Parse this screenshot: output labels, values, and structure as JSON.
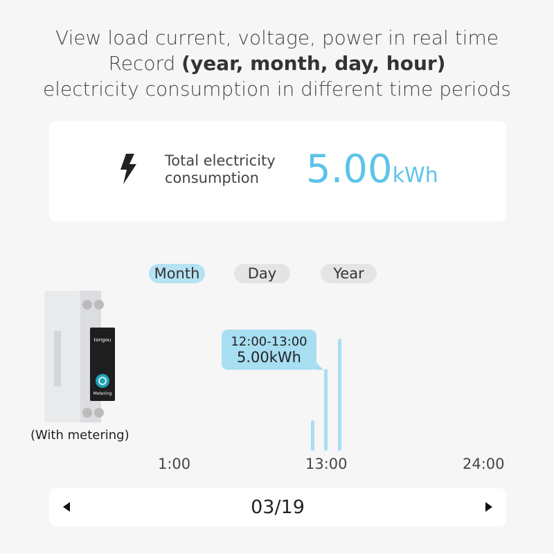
{
  "headline": {
    "line1": "View load current, voltage, power in real time",
    "line2_prefix": "Record ",
    "line2_bold": "(year, month, day, hour)",
    "line3": "electricity consumption in different time periods"
  },
  "total": {
    "icon": "lightning-bolt-icon",
    "label_line1": "Total electricity",
    "label_line2": "consumption",
    "value": "5.00",
    "unit": "kWh",
    "color": "#5cc4e8"
  },
  "tabs": [
    {
      "label": "Month",
      "active": true
    },
    {
      "label": "Day",
      "active": false
    },
    {
      "label": "Year",
      "active": false
    }
  ],
  "device": {
    "caption": "(With metering)",
    "brand": "tongou",
    "button_label": "Metering"
  },
  "chart_data": {
    "type": "bar",
    "x_ticks": [
      "1:00",
      "13:00",
      "24:00"
    ],
    "tooltip": {
      "range": "12:00-13:00",
      "value": "5.00kWh"
    },
    "bar_color": "#a8def2",
    "values_relative": [
      0.27,
      0.73,
      1.0
    ]
  },
  "nav": {
    "date": "03/19",
    "prev_icon": "triangle-left-icon",
    "next_icon": "triangle-right-icon"
  }
}
